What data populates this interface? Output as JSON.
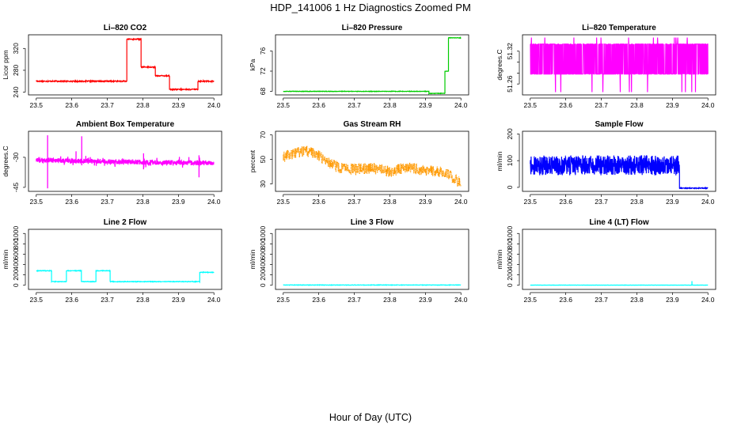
{
  "title": "HDP_141006  1 Hz Diagnostics Zoomed PM",
  "xlabel": "Hour of Day (UTC)",
  "chart_data": [
    {
      "type": "line",
      "title": "Li–820 CO2",
      "ylabel": "Licor ppm",
      "color": "#ff0000",
      "xlim": [
        23.5,
        24.0
      ],
      "xticks": [
        "23.5",
        "23.6",
        "23.7",
        "23.8",
        "23.9",
        "24.0"
      ],
      "ylim": [
        235,
        345
      ],
      "yticks": [
        240,
        280,
        320
      ],
      "noise": 1.0,
      "segments": [
        {
          "x0": 23.5,
          "x1": 23.755,
          "y": 260
        },
        {
          "x0": 23.755,
          "x1": 23.795,
          "y": 337
        },
        {
          "x0": 23.795,
          "x1": 23.835,
          "y": 286
        },
        {
          "x0": 23.835,
          "x1": 23.875,
          "y": 270
        },
        {
          "x0": 23.875,
          "x1": 23.955,
          "y": 245
        },
        {
          "x0": 23.955,
          "x1": 24.0,
          "y": 260
        }
      ]
    },
    {
      "type": "line",
      "title": "Li–820 Pressure",
      "ylabel": "kPa",
      "color": "#00cc00",
      "xlim": [
        23.5,
        24.0
      ],
      "xticks": [
        "23.5",
        "23.6",
        "23.7",
        "23.8",
        "23.9",
        "24.0"
      ],
      "ylim": [
        67.3,
        79.2
      ],
      "yticks": [
        68,
        72,
        76
      ],
      "noise": 0.05,
      "segments": [
        {
          "x0": 23.5,
          "x1": 23.91,
          "y": 68.0
        },
        {
          "x0": 23.91,
          "x1": 23.955,
          "y": 67.6
        },
        {
          "x0": 23.955,
          "x1": 23.965,
          "y": 72.0
        },
        {
          "x0": 23.965,
          "x1": 24.0,
          "y": 78.6
        }
      ]
    },
    {
      "type": "line",
      "title": "Li–820 Temperature",
      "ylabel": "degrees.C",
      "color": "#ff00ff",
      "xlim": [
        23.5,
        24.0
      ],
      "xticks": [
        "23.5",
        "23.6",
        "23.7",
        "23.8",
        "23.9",
        "24.0"
      ],
      "ylim": [
        51.24,
        51.35
      ],
      "yticks": [
        51.26,
        51.28,
        51.3,
        51.32
      ],
      "ytick_labels": [
        "51.26",
        "",
        "",
        "51.32"
      ],
      "pattern": "binary",
      "levels": [
        51.278,
        51.333
      ],
      "spike_low": 51.245,
      "spike_high": 51.345
    },
    {
      "type": "line",
      "title": "Ambient Box Temperature",
      "ylabel": "degrees.C",
      "color": "#ff00ff",
      "xlim": [
        23.5,
        24.0
      ],
      "xticks": [
        "23.5",
        "23.6",
        "23.7",
        "23.8",
        "23.9",
        "24.0"
      ],
      "ylim": [
        -47,
        -17
      ],
      "yticks": [
        -45,
        -30
      ],
      "base": -31.5,
      "drift": -1.5,
      "noise": 1.2,
      "spikes": [
        {
          "x": 23.532,
          "y0": -45.5,
          "y1": -19
        },
        {
          "x": 23.628,
          "y0": -34,
          "y1": -19.5
        },
        {
          "x": 23.612,
          "y0": -33,
          "y1": -27
        },
        {
          "x": 23.802,
          "y0": -36,
          "y1": -28
        },
        {
          "x": 23.958,
          "y0": -40,
          "y1": -29
        }
      ]
    },
    {
      "type": "line",
      "title": "Gas Stream RH",
      "ylabel": "percent",
      "color": "#ff9900",
      "xlim": [
        23.5,
        24.0
      ],
      "xticks": [
        "23.5",
        "23.6",
        "23.7",
        "23.8",
        "23.9",
        "24.0"
      ],
      "ylim": [
        24,
        73
      ],
      "yticks": [
        30,
        50,
        70
      ],
      "dotted": true,
      "trend": [
        [
          23.5,
          52
        ],
        [
          23.53,
          55
        ],
        [
          23.56,
          57
        ],
        [
          23.59,
          55
        ],
        [
          23.62,
          49
        ],
        [
          23.66,
          43
        ],
        [
          23.7,
          42
        ],
        [
          23.75,
          43
        ],
        [
          23.8,
          40
        ],
        [
          23.85,
          44
        ],
        [
          23.9,
          41
        ],
        [
          23.95,
          40
        ],
        [
          23.98,
          35
        ],
        [
          24.0,
          30
        ]
      ],
      "noise": 4.5
    },
    {
      "type": "line",
      "title": "Sample Flow",
      "ylabel": "ml/min",
      "color": "#0000ff",
      "xlim": [
        23.5,
        24.0
      ],
      "xticks": [
        "23.5",
        "23.6",
        "23.7",
        "23.8",
        "23.9",
        "24.0"
      ],
      "ylim": [
        -15,
        210
      ],
      "yticks": [
        0,
        100,
        200
      ],
      "pattern": "noisy_block",
      "block_x1": 23.92,
      "block_lo": 45,
      "block_hi": 120,
      "tail_y": -3
    },
    {
      "type": "line",
      "title": "Line 2 Flow",
      "ylabel": "ml/min",
      "color": "#00ffff",
      "xlim": [
        23.5,
        24.0
      ],
      "xticks": [
        "23.5",
        "23.6",
        "23.7",
        "23.8",
        "23.9",
        "24.0"
      ],
      "ylim": [
        -80,
        1080
      ],
      "yticks": [
        0,
        200,
        400,
        600,
        800,
        1000
      ],
      "ytick_labels": [
        "0",
        "200",
        "400",
        "600",
        "800",
        "1000"
      ],
      "noise": 6,
      "segments": [
        {
          "x0": 23.5,
          "x1": 23.543,
          "y": 280
        },
        {
          "x0": 23.543,
          "x1": 23.585,
          "y": 70
        },
        {
          "x0": 23.585,
          "x1": 23.627,
          "y": 280
        },
        {
          "x0": 23.627,
          "x1": 23.668,
          "y": 70
        },
        {
          "x0": 23.668,
          "x1": 23.708,
          "y": 280
        },
        {
          "x0": 23.708,
          "x1": 23.96,
          "y": 70
        },
        {
          "x0": 23.96,
          "x1": 24.0,
          "y": 250
        }
      ]
    },
    {
      "type": "line",
      "title": "Line 3 Flow",
      "ylabel": "ml/min",
      "color": "#00ffff",
      "xlim": [
        23.5,
        24.0
      ],
      "xticks": [
        "23.5",
        "23.6",
        "23.7",
        "23.8",
        "23.9",
        "24.0"
      ],
      "ylim": [
        -80,
        1080
      ],
      "yticks": [
        0,
        200,
        400,
        600,
        800,
        1000
      ],
      "ytick_labels": [
        "0",
        "200",
        "400",
        "600",
        "800",
        "1000"
      ],
      "noise": 4,
      "segments": [
        {
          "x0": 23.5,
          "x1": 24.0,
          "y": 5
        }
      ]
    },
    {
      "type": "line",
      "title": "Line 4 (LT) Flow",
      "ylabel": "ml/min",
      "color": "#00ffff",
      "xlim": [
        23.5,
        24.0
      ],
      "xticks": [
        "23.5",
        "23.6",
        "23.7",
        "23.8",
        "23.9",
        "24.0"
      ],
      "ylim": [
        -80,
        1080
      ],
      "yticks": [
        0,
        200,
        400,
        600,
        800,
        1000
      ],
      "ytick_labels": [
        "0",
        "200",
        "400",
        "600",
        "800",
        "1000"
      ],
      "noise": 2,
      "segments": [
        {
          "x0": 23.5,
          "x1": 24.0,
          "y": 3
        }
      ],
      "spikes": [
        {
          "x": 23.955,
          "y0": 3,
          "y1": 80
        }
      ]
    }
  ]
}
